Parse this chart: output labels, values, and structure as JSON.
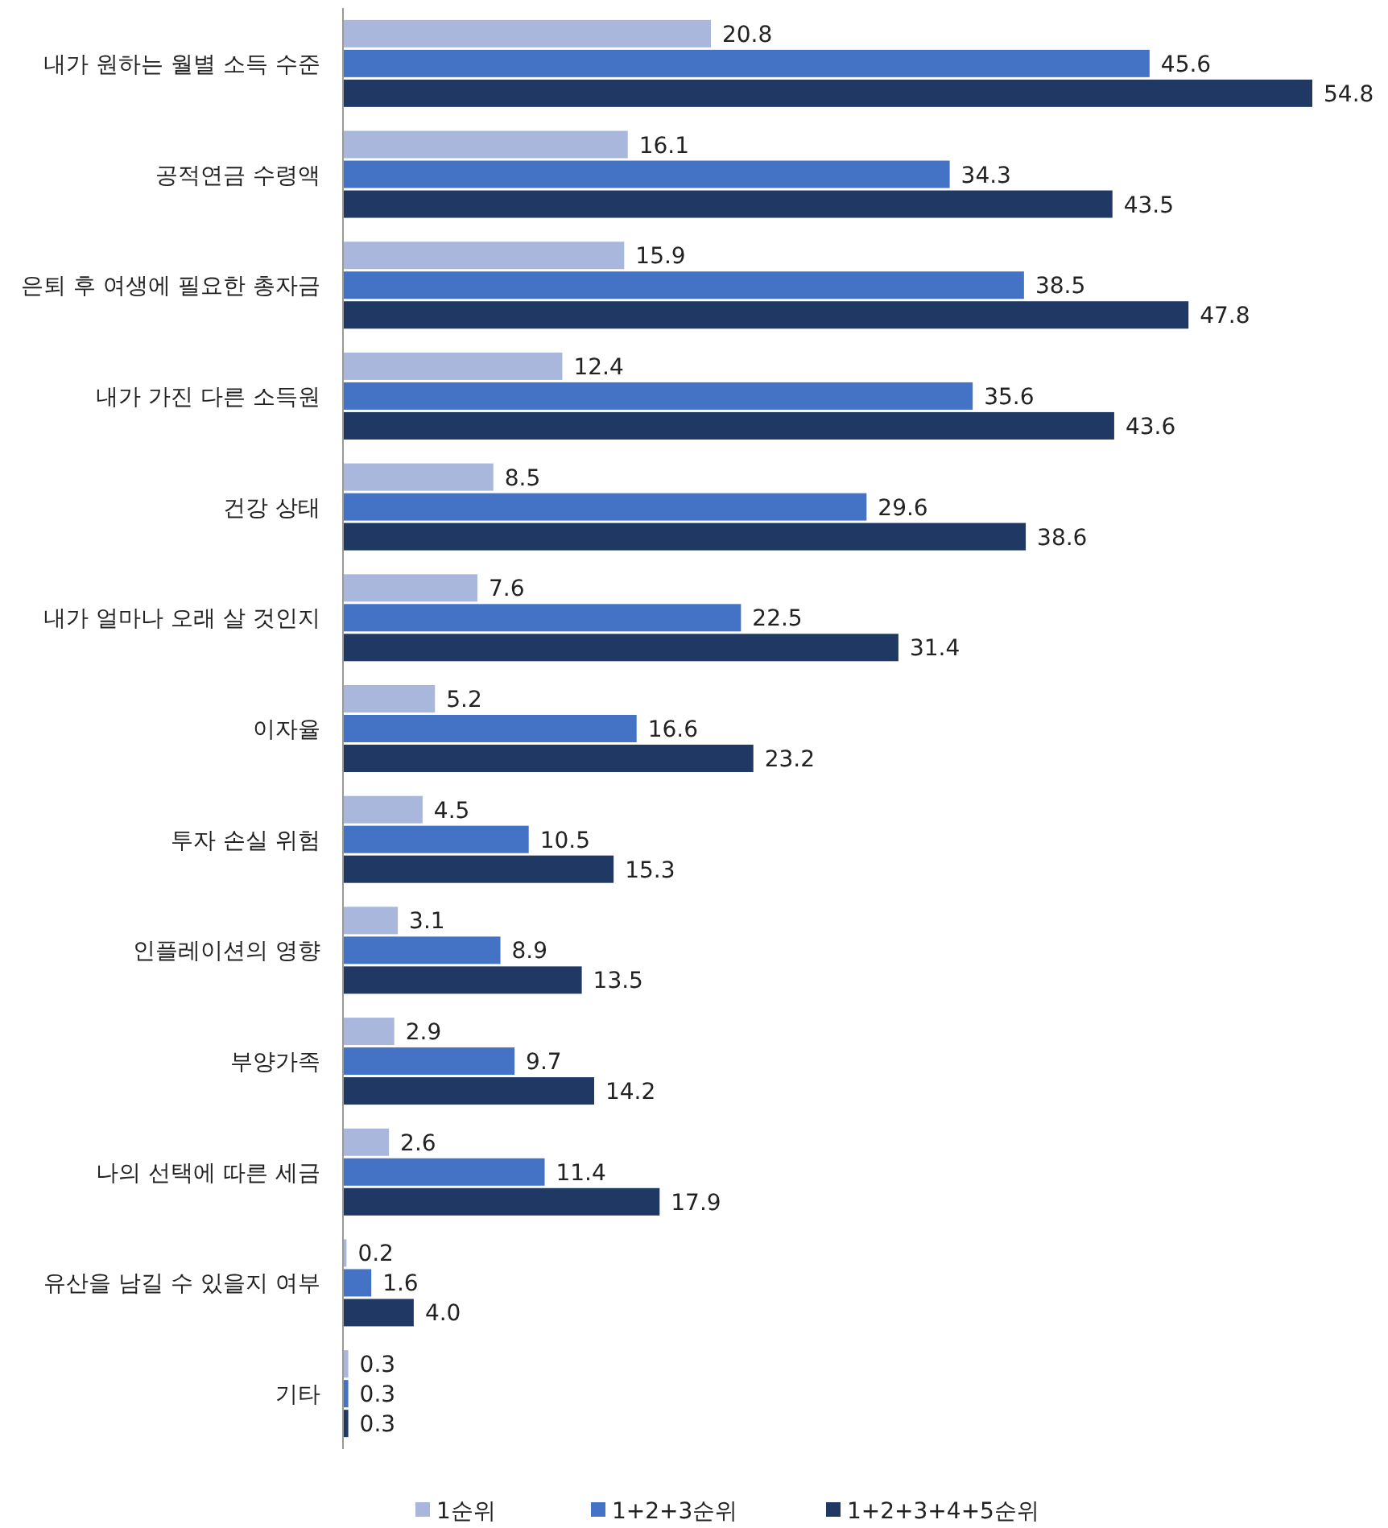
{
  "chart_data": {
    "type": "bar",
    "orientation": "horizontal",
    "categories": [
      "내가 원하는 월별 소득 수준",
      "공적연금 수령액",
      "은퇴 후 여생에 필요한 총자금",
      "내가 가진 다른 소득원",
      "건강 상태",
      "내가 얼마나 오래 살 것인지",
      "이자율",
      "투자 손실 위험",
      "인플레이션의 영향",
      "부양가족",
      "나의 선택에 따른 세금",
      "유산을 남길 수 있을지 여부",
      "기타"
    ],
    "series": [
      {
        "name": "1순위",
        "color": "#a9b7dc",
        "values": [
          20.8,
          16.1,
          15.9,
          12.4,
          8.5,
          7.6,
          5.2,
          4.5,
          3.1,
          2.9,
          2.6,
          0.2,
          0.3
        ],
        "value_labels": [
          "20.8",
          "16.1",
          "15.9",
          "12.4",
          "8.5",
          "7.6",
          "5.2",
          "4.5",
          "3.1",
          "2.9",
          "2.6",
          "0.2",
          "0.3"
        ]
      },
      {
        "name": "1+2+3순위",
        "color": "#4472c4",
        "values": [
          45.6,
          34.3,
          38.5,
          35.6,
          29.6,
          22.5,
          16.6,
          10.5,
          8.9,
          9.7,
          11.4,
          1.6,
          0.3
        ],
        "value_labels": [
          "45.6",
          "34.3",
          "38.5",
          "35.6",
          "29.6",
          "22.5",
          "16.6",
          "10.5",
          "8.9",
          "9.7",
          "11.4",
          "1.6",
          "0.3"
        ]
      },
      {
        "name": "1+2+3+4+5순위",
        "color": "#1f3864",
        "values": [
          54.8,
          43.5,
          47.8,
          43.6,
          38.6,
          31.4,
          23.2,
          15.3,
          13.5,
          14.2,
          17.9,
          4.0,
          0.3
        ],
        "value_labels": [
          "54.8",
          "43.5",
          "47.8",
          "43.6",
          "38.6",
          "31.4",
          "23.2",
          "15.3",
          "13.5",
          "14.2",
          "17.9",
          "4.0",
          "0.3"
        ]
      }
    ],
    "legend": "bottom"
  }
}
